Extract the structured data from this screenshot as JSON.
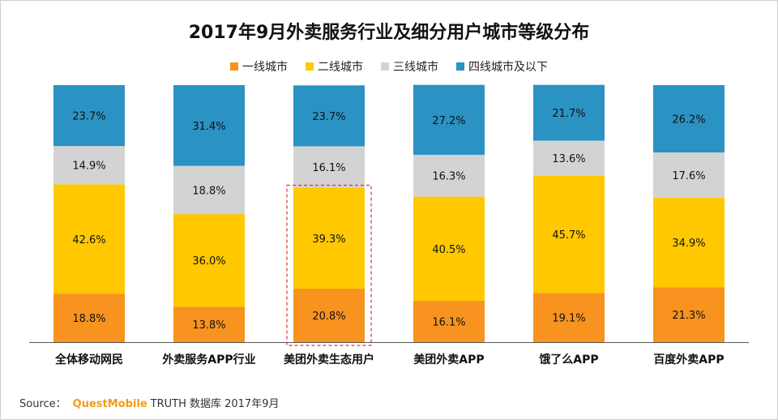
{
  "chart_data": {
    "type": "bar",
    "stacked": true,
    "percent": true,
    "title": "2017年9月外卖服务行业及细分用户城市等级分布",
    "categories": [
      "全体移动网民",
      "外卖服务APP行业",
      "美团外卖生态用户",
      "美团外卖APP",
      "饿了么APP",
      "百度外卖APP"
    ],
    "series": [
      {
        "name": "一线城市",
        "color": "#f7931e",
        "values": [
          18.8,
          13.8,
          20.8,
          16.1,
          19.1,
          21.3
        ]
      },
      {
        "name": "二线城市",
        "color": "#ffc800",
        "values": [
          42.6,
          36.0,
          39.3,
          40.5,
          45.7,
          34.9
        ]
      },
      {
        "name": "三线城市",
        "color": "#d3d3d3",
        "values": [
          14.9,
          18.8,
          16.1,
          16.3,
          13.6,
          17.6
        ]
      },
      {
        "name": "四线城市及以下",
        "color": "#2b92c4",
        "values": [
          23.7,
          31.4,
          23.7,
          27.2,
          21.7,
          26.2
        ]
      }
    ],
    "value_suffix": "%",
    "ylim": [
      0,
      100
    ],
    "grid": false,
    "legend_position": "top",
    "highlighted_category": "美团外卖生态用户"
  },
  "source": {
    "label": "Source：",
    "brand": "QuestMobile",
    "text": "TRUTH 数据库 2017年9月"
  }
}
